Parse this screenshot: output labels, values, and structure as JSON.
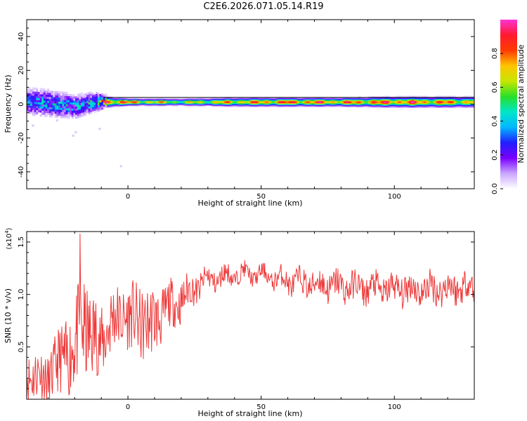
{
  "title": "C2E6.2026.071.05.14.R19",
  "chart_data": [
    {
      "type": "heatmap",
      "xlabel": "Height of straight line (km)",
      "ylabel": "Frequency (Hz)",
      "xlim": [
        -38,
        130
      ],
      "ylim": [
        -50,
        50
      ],
      "xticks": [
        0,
        50,
        100
      ],
      "yticks": [
        -40,
        -20,
        0,
        20,
        40
      ],
      "colorbar": {
        "label": "Normalized spectral amplitude",
        "range": [
          0.0,
          1.0
        ],
        "ticks": [
          "0.0",
          "0.2",
          "0.4",
          "0.6",
          "0.8"
        ],
        "colors": [
          "#ffffff",
          "#c9a6ff",
          "#7a00ff",
          "#1f1fff",
          "#00b7ff",
          "#00e6c8",
          "#28e028",
          "#c8e600",
          "#ffc400",
          "#ff3b00",
          "#ff1a2e",
          "#ff33d6"
        ]
      },
      "band": {
        "center_hz_x": [
          -38,
          -30,
          -20,
          -12,
          -8,
          0,
          20,
          40,
          60,
          80,
          100,
          115,
          130
        ],
        "center_hz_y": [
          1,
          0,
          -2,
          1,
          1,
          1,
          1,
          1,
          1,
          1,
          1,
          1,
          1
        ],
        "halfwidth_hz": [
          8,
          8,
          7,
          6,
          3,
          2,
          2,
          2.5,
          2.5,
          2.5,
          3,
          3,
          3
        ],
        "peak_amplitude": [
          0.35,
          0.4,
          0.4,
          0.45,
          0.95,
          0.9,
          0.7,
          0.85,
          0.95,
          0.9,
          0.95,
          0.9,
          0.85
        ]
      }
    },
    {
      "type": "line",
      "xlabel": "Height of straight line (km)",
      "ylabel": "SNR (10 * v/v)",
      "scale_label": "(x10",
      "scale_exp": "4",
      "scale_close": ")",
      "xlim": [
        -38,
        130
      ],
      "ylim": [
        0.0,
        1.6
      ],
      "xticks": [
        0,
        50,
        100
      ],
      "yticks": [
        0.5,
        1.0,
        1.5
      ],
      "ytick_labels": [
        "0.5",
        "1.0",
        "1.5"
      ],
      "series_color": "#ee3b3b",
      "envelope": {
        "x": [
          -38,
          -30,
          -24,
          -20,
          -17,
          -14,
          -10,
          -6,
          -2,
          4,
          8,
          14,
          20,
          28,
          36,
          44,
          52,
          56,
          62,
          70,
          80,
          90,
          100,
          110,
          120,
          130
        ],
        "mean": [
          0.25,
          0.2,
          0.4,
          0.5,
          0.7,
          0.6,
          0.55,
          0.75,
          0.8,
          0.75,
          0.7,
          0.85,
          0.95,
          1.12,
          1.17,
          1.2,
          1.18,
          1.15,
          1.12,
          1.1,
          1.08,
          1.06,
          1.05,
          1.05,
          1.06,
          1.08
        ],
        "spread": [
          0.25,
          0.25,
          0.35,
          0.45,
          0.5,
          0.45,
          0.35,
          0.35,
          0.3,
          0.35,
          0.35,
          0.25,
          0.2,
          0.12,
          0.1,
          0.08,
          0.08,
          0.1,
          0.12,
          0.14,
          0.15,
          0.14,
          0.15,
          0.15,
          0.16,
          0.15
        ],
        "peak_x": -18,
        "peak_value": 1.58
      }
    }
  ]
}
